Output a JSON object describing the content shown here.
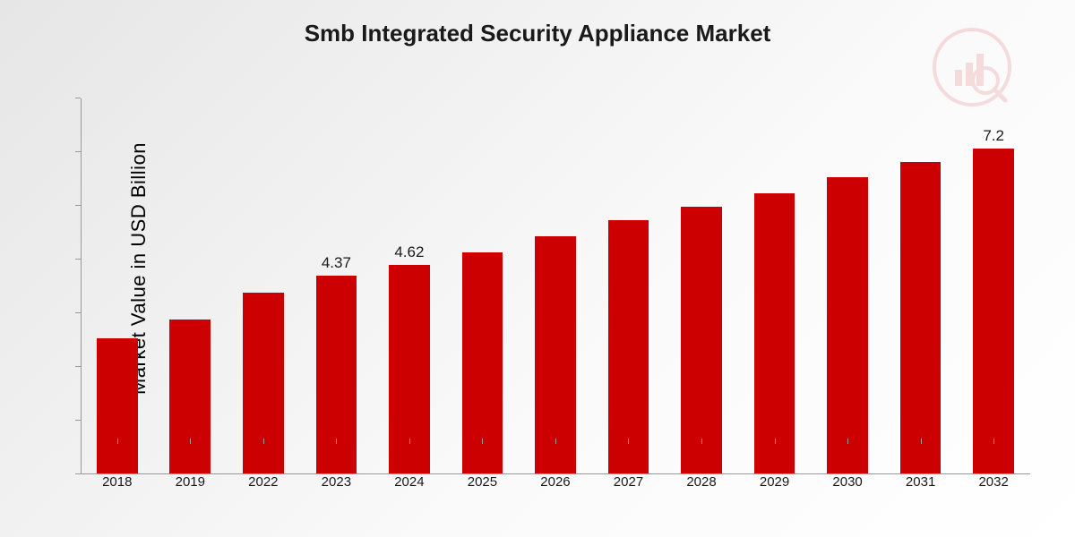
{
  "chart": {
    "type": "bar",
    "title": "Smb Integrated Security Appliance Market",
    "title_fontsize": 26,
    "ylabel": "Market Value in USD Billion",
    "ylabel_fontsize": 22,
    "background_gradient": [
      "#e6e6e6",
      "#fafafa",
      "#ffffff"
    ],
    "axis_color": "#999999",
    "text_color": "#1a1a1a",
    "bar_color": "#cc0000",
    "bar_width_ratio": 0.56,
    "y_max_display": 8.3,
    "tick_fontsize": 15,
    "value_label_fontsize": 17,
    "categories": [
      "2018",
      "2019",
      "2022",
      "2023",
      "2024",
      "2025",
      "2026",
      "2027",
      "2028",
      "2029",
      "2030",
      "2031",
      "2032"
    ],
    "values": [
      3.0,
      3.4,
      4.0,
      4.37,
      4.62,
      4.9,
      5.25,
      5.6,
      5.9,
      6.2,
      6.55,
      6.9,
      7.2
    ],
    "value_labels": [
      "",
      "",
      "",
      "4.37",
      "4.62",
      "",
      "",
      "",
      "",
      "",
      "",
      "",
      "7.2"
    ],
    "y_tick_count": 7,
    "watermark_color": "#cc0000"
  }
}
